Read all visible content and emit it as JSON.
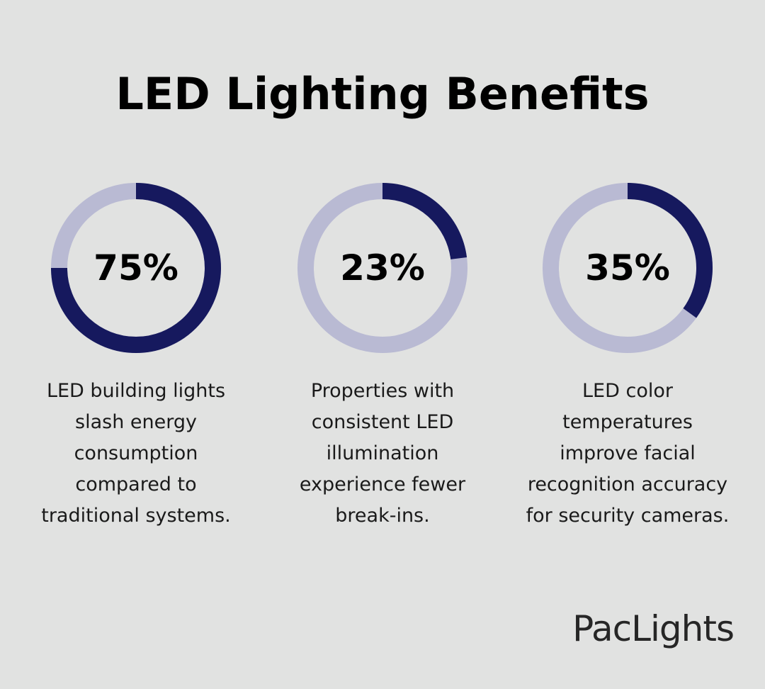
{
  "title": "LED Lighting Benefits",
  "brand": "PacLights",
  "chart_data": [
    {
      "type": "donut",
      "values": [
        75
      ],
      "value_labels": [
        "75%"
      ],
      "caption": "LED building lights slash energy consumption compared to traditional systems.",
      "color": "#16195e",
      "track_color": "#b9bad3"
    },
    {
      "type": "donut",
      "values": [
        23
      ],
      "value_labels": [
        "23%"
      ],
      "caption": "Properties with consistent LED illumination experience fewer break-ins.",
      "color": "#16195e",
      "track_color": "#b9bad3"
    },
    {
      "type": "donut",
      "values": [
        35
      ],
      "value_labels": [
        "35%"
      ],
      "caption": "LED color temperatures improve facial recognition accuracy for security cameras.",
      "color": "#16195e",
      "track_color": "#b9bad3"
    }
  ]
}
